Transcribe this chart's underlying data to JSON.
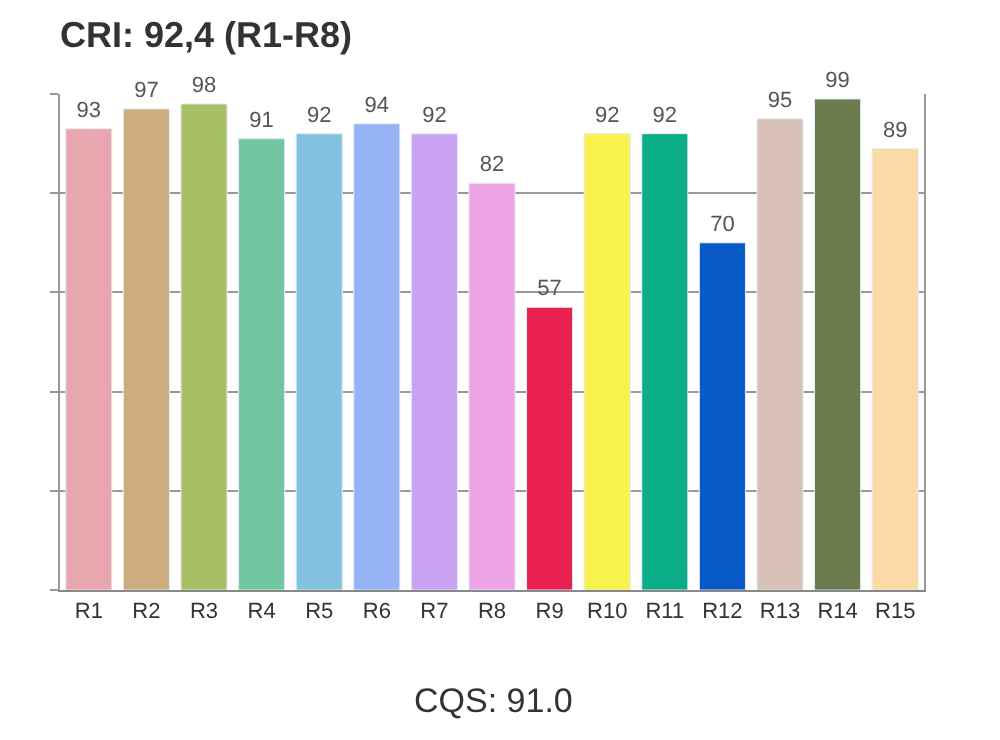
{
  "chart_data": {
    "type": "bar",
    "title": "CRI: 92,4 (R1-R8)",
    "annotations": [
      "CQS: 91.0"
    ],
    "categories": [
      "R1",
      "R2",
      "R3",
      "R4",
      "R5",
      "R6",
      "R7",
      "R8",
      "R9",
      "R10",
      "R11",
      "R12",
      "R13",
      "R14",
      "R15"
    ],
    "values": [
      93,
      97,
      98,
      91,
      92,
      94,
      92,
      82,
      57,
      92,
      92,
      70,
      95,
      99,
      89
    ],
    "colors": [
      "#e8a7ae",
      "#cdac80",
      "#a8c065",
      "#72c7a0",
      "#80c2e0",
      "#96b3f5",
      "#caa3f5",
      "#eea5e8",
      "#e8214f",
      "#f9f24c",
      "#0aad88",
      "#0659c6",
      "#d6c0b8",
      "#6a7b4e",
      "#fbdaa5"
    ],
    "ylim": [
      0,
      100
    ],
    "yticks": [
      {
        "value": 0,
        "label": null
      },
      {
        "value": 20,
        "label": null
      },
      {
        "value": 40,
        "label": null
      },
      {
        "value": 60,
        "label": null
      },
      {
        "value": 80,
        "label": null
      },
      {
        "value": 100,
        "label": null
      }
    ],
    "grid": "y",
    "tick_labels": "x",
    "data_labels": true,
    "legend": false
  }
}
